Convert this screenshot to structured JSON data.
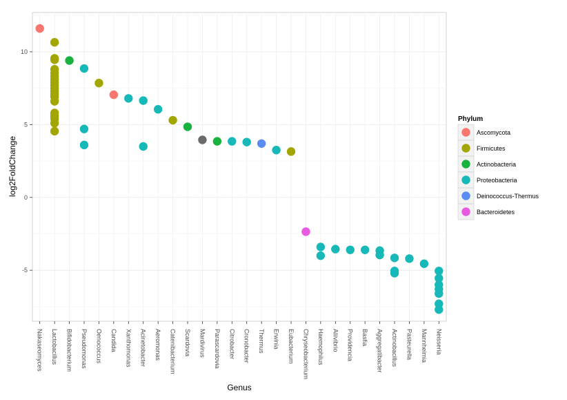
{
  "chart_data": {
    "type": "scatter",
    "title": "",
    "xlabel": "Genus",
    "ylabel": "log2FoldChange",
    "ylim": [
      -8.5,
      12.7
    ],
    "yticks": [
      10,
      5,
      0,
      -5
    ],
    "ytick_labels": [
      "10",
      "5",
      "0",
      "-5"
    ],
    "grid": true,
    "legend_position": "right",
    "categories": [
      "Nakaseomyces",
      "Lactobacillus",
      "Bifidobacterium",
      "Pseudomonas",
      "Oenococcus",
      "Candida",
      "Xanthomonas",
      "Acinetobacter",
      "Aeromonas",
      "Catenibacterium",
      "Scardovia",
      "Mardivirus",
      "Parascardovia",
      "Citrobacter",
      "Cronobacter",
      "Thermus",
      "Erwinia",
      "Eubacterium",
      "Chryseobacterium",
      "Haemophilus",
      "Aliivibrio",
      "Providencia",
      "Basfia",
      "Aggregatibacter",
      "Actinobacillus",
      "Pasteurella",
      "Mannheimia",
      "Neisseria"
    ],
    "legend": {
      "title": "Phylum",
      "entries": [
        {
          "name": "Ascomycota",
          "color": "#F8766D"
        },
        {
          "name": "Firmicutes",
          "color": "#A3A500"
        },
        {
          "name": "Actinobacteria",
          "color": "#19B23F"
        },
        {
          "name": "Proteobacteria",
          "color": "#17B8B8"
        },
        {
          "name": "Deinococcus-Thermus",
          "color": "#5B8CF2"
        },
        {
          "name": "Bacteroidetes",
          "color": "#E85AE0"
        }
      ]
    },
    "unlisted_colors": {
      "Mardivirus": "#6B6B6B"
    },
    "series": [
      {
        "name": "Ascomycota",
        "points": [
          [
            "Nakaseomyces",
            11.6
          ],
          [
            "Candida",
            7.05
          ]
        ]
      },
      {
        "name": "Firmicutes",
        "points": [
          [
            "Lactobacillus",
            10.65
          ],
          [
            "Lactobacillus",
            9.55
          ],
          [
            "Lactobacillus",
            9.45
          ],
          [
            "Lactobacillus",
            8.8
          ],
          [
            "Lactobacillus",
            8.55
          ],
          [
            "Lactobacillus",
            8.3
          ],
          [
            "Lactobacillus",
            8.1
          ],
          [
            "Lactobacillus",
            7.9
          ],
          [
            "Lactobacillus",
            7.7
          ],
          [
            "Lactobacillus",
            7.5
          ],
          [
            "Lactobacillus",
            7.3
          ],
          [
            "Lactobacillus",
            7.1
          ],
          [
            "Lactobacillus",
            6.9
          ],
          [
            "Lactobacillus",
            6.6
          ],
          [
            "Lactobacillus",
            5.8
          ],
          [
            "Lactobacillus",
            5.6
          ],
          [
            "Lactobacillus",
            5.4
          ],
          [
            "Lactobacillus",
            5.1
          ],
          [
            "Lactobacillus",
            4.55
          ],
          [
            "Oenococcus",
            7.85
          ],
          [
            "Catenibacterium",
            5.3
          ],
          [
            "Eubacterium",
            3.15
          ]
        ]
      },
      {
        "name": "Actinobacteria",
        "points": [
          [
            "Bifidobacterium",
            9.4
          ],
          [
            "Scardovia",
            4.85
          ],
          [
            "Parascardovia",
            3.85
          ]
        ]
      },
      {
        "name": "Proteobacteria",
        "points": [
          [
            "Pseudomonas",
            8.85
          ],
          [
            "Pseudomonas",
            4.7
          ],
          [
            "Pseudomonas",
            3.6
          ],
          [
            "Xanthomonas",
            6.8
          ],
          [
            "Acinetobacter",
            6.65
          ],
          [
            "Acinetobacter",
            3.5
          ],
          [
            "Aeromonas",
            6.05
          ],
          [
            "Citrobacter",
            3.85
          ],
          [
            "Cronobacter",
            3.8
          ],
          [
            "Erwinia",
            3.25
          ],
          [
            "Haemophilus",
            -3.4
          ],
          [
            "Haemophilus",
            -4.0
          ],
          [
            "Aliivibrio",
            -3.55
          ],
          [
            "Providencia",
            -3.6
          ],
          [
            "Basfia",
            -3.6
          ],
          [
            "Aggregatibacter",
            -3.65
          ],
          [
            "Aggregatibacter",
            -3.95
          ],
          [
            "Actinobacillus",
            -4.15
          ],
          [
            "Actinobacillus",
            -5.05
          ],
          [
            "Actinobacillus",
            -5.2
          ],
          [
            "Pasteurella",
            -4.2
          ],
          [
            "Mannheimia",
            -4.55
          ],
          [
            "Neisseria",
            -5.05
          ],
          [
            "Neisseria",
            -5.55
          ],
          [
            "Neisseria",
            -6.0
          ],
          [
            "Neisseria",
            -6.3
          ],
          [
            "Neisseria",
            -6.6
          ],
          [
            "Neisseria",
            -7.3
          ],
          [
            "Neisseria",
            -7.7
          ]
        ]
      },
      {
        "name": "Deinococcus-Thermus",
        "points": [
          [
            "Thermus",
            3.7
          ]
        ]
      },
      {
        "name": "Bacteroidetes",
        "points": [
          [
            "Chryseobacterium",
            -2.35
          ]
        ]
      },
      {
        "name": "Mardivirus",
        "points": [
          [
            "Mardivirus",
            3.95
          ]
        ]
      }
    ]
  }
}
